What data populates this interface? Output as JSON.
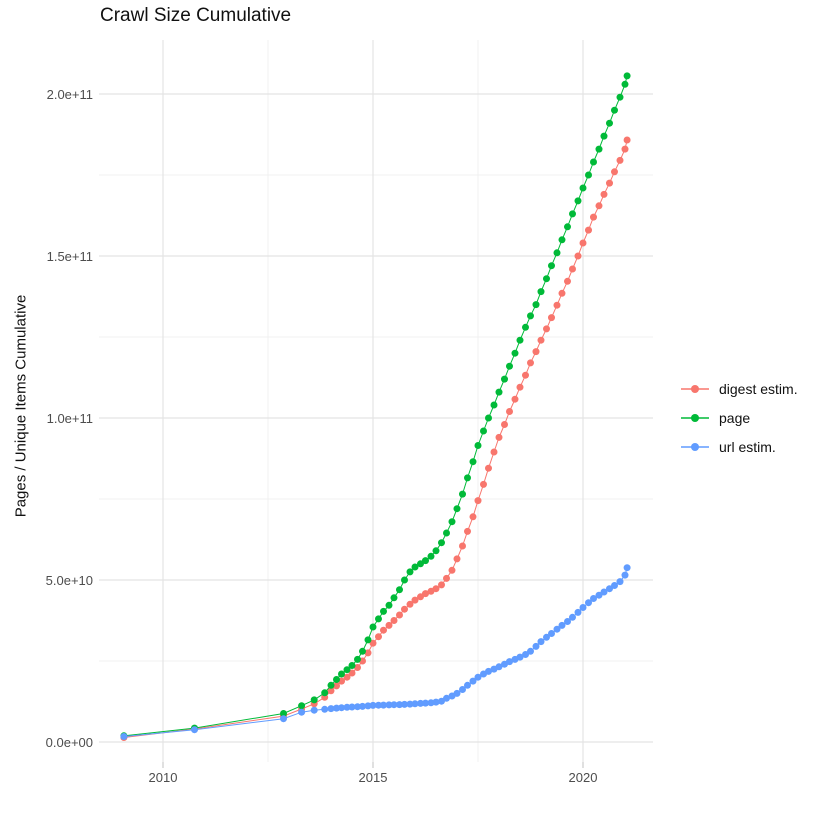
{
  "chart_data": {
    "type": "scatter",
    "title": "Crawl Size Cumulative",
    "xlabel": "",
    "legend_position": "right",
    "grid": true,
    "value_scale": "series point values are billions (1e9) of pages / unique items",
    "x_axis": {
      "range_years": [
        2008.45,
        2021.7
      ],
      "ticks": [
        {
          "label": "2010",
          "year": 2010
        },
        {
          "label": "2015",
          "year": 2015
        },
        {
          "label": "2020",
          "year": 2020
        }
      ],
      "minor_years": [
        2012.5,
        2017.5
      ]
    },
    "y_axis": {
      "label": "Pages / Unique Items Cumulative",
      "range_billions": [
        0,
        216
      ],
      "ticks": [
        {
          "label": "0.0e+00",
          "value_billions": 0
        },
        {
          "label": "5.0e+10",
          "value_billions": 50
        },
        {
          "label": "1.0e+11",
          "value_billions": 100
        },
        {
          "label": "1.5e+11",
          "value_billions": 150
        },
        {
          "label": "2.0e+11",
          "value_billions": 200
        }
      ],
      "minor_billions": [
        25,
        75,
        125,
        175
      ]
    },
    "series": [
      {
        "name": "digest estim.",
        "color": "#F8766D",
        "points": [
          [
            2009.07,
            1.4
          ],
          [
            2010.75,
            4.0
          ],
          [
            2012.87,
            8.0
          ],
          [
            2013.3,
            10.2
          ],
          [
            2013.6,
            11.8
          ],
          [
            2013.85,
            13.8
          ],
          [
            2014.0,
            15.8
          ],
          [
            2014.13,
            17.3
          ],
          [
            2014.25,
            18.8
          ],
          [
            2014.38,
            20.0
          ],
          [
            2014.5,
            21.3
          ],
          [
            2014.63,
            23.0
          ],
          [
            2014.75,
            25.0
          ],
          [
            2014.88,
            27.5
          ],
          [
            2015.0,
            30.5
          ],
          [
            2015.13,
            32.5
          ],
          [
            2015.25,
            34.5
          ],
          [
            2015.38,
            36.0
          ],
          [
            2015.5,
            37.5
          ],
          [
            2015.63,
            39.2
          ],
          [
            2015.75,
            41.0
          ],
          [
            2015.88,
            42.5
          ],
          [
            2016.0,
            43.8
          ],
          [
            2016.13,
            44.8
          ],
          [
            2016.25,
            45.8
          ],
          [
            2016.38,
            46.5
          ],
          [
            2016.5,
            47.3
          ],
          [
            2016.63,
            48.5
          ],
          [
            2016.75,
            50.5
          ],
          [
            2016.88,
            53.0
          ],
          [
            2017.0,
            56.5
          ],
          [
            2017.13,
            60.5
          ],
          [
            2017.25,
            65.0
          ],
          [
            2017.38,
            69.5
          ],
          [
            2017.5,
            74.5
          ],
          [
            2017.63,
            79.5
          ],
          [
            2017.75,
            84.5
          ],
          [
            2017.88,
            89.5
          ],
          [
            2018.0,
            94.0
          ],
          [
            2018.13,
            98.0
          ],
          [
            2018.25,
            102.0
          ],
          [
            2018.38,
            105.8
          ],
          [
            2018.5,
            109.5
          ],
          [
            2018.63,
            113.2
          ],
          [
            2018.75,
            117.0
          ],
          [
            2018.88,
            120.5
          ],
          [
            2019.0,
            124.0
          ],
          [
            2019.13,
            127.5
          ],
          [
            2019.25,
            131.0
          ],
          [
            2019.38,
            134.8
          ],
          [
            2019.5,
            138.5
          ],
          [
            2019.63,
            142.2
          ],
          [
            2019.75,
            146.0
          ],
          [
            2019.88,
            150.0
          ],
          [
            2020.0,
            154.0
          ],
          [
            2020.13,
            158.0
          ],
          [
            2020.25,
            162.0
          ],
          [
            2020.38,
            165.5
          ],
          [
            2020.5,
            169.0
          ],
          [
            2020.63,
            172.5
          ],
          [
            2020.75,
            176.0
          ],
          [
            2020.88,
            179.5
          ],
          [
            2021.0,
            183.0
          ],
          [
            2021.05,
            185.8
          ]
        ]
      },
      {
        "name": "page",
        "color": "#00BA38",
        "points": [
          [
            2009.07,
            1.9
          ],
          [
            2010.75,
            4.3
          ],
          [
            2012.87,
            8.8
          ],
          [
            2013.3,
            11.2
          ],
          [
            2013.6,
            13.0
          ],
          [
            2013.85,
            15.2
          ],
          [
            2014.0,
            17.5
          ],
          [
            2014.13,
            19.3
          ],
          [
            2014.25,
            21.0
          ],
          [
            2014.38,
            22.3
          ],
          [
            2014.5,
            23.6
          ],
          [
            2014.63,
            25.5
          ],
          [
            2014.75,
            28.0
          ],
          [
            2014.88,
            31.5
          ],
          [
            2015.0,
            35.5
          ],
          [
            2015.13,
            38.0
          ],
          [
            2015.25,
            40.3
          ],
          [
            2015.38,
            42.2
          ],
          [
            2015.5,
            44.5
          ],
          [
            2015.63,
            47.0
          ],
          [
            2015.75,
            50.0
          ],
          [
            2015.88,
            52.5
          ],
          [
            2016.0,
            54.0
          ],
          [
            2016.13,
            55.0
          ],
          [
            2016.25,
            56.0
          ],
          [
            2016.38,
            57.3
          ],
          [
            2016.5,
            59.0
          ],
          [
            2016.63,
            61.5
          ],
          [
            2016.75,
            64.5
          ],
          [
            2016.88,
            68.0
          ],
          [
            2017.0,
            72.0
          ],
          [
            2017.13,
            76.5
          ],
          [
            2017.25,
            81.5
          ],
          [
            2017.38,
            86.5
          ],
          [
            2017.5,
            91.5
          ],
          [
            2017.63,
            96.0
          ],
          [
            2017.75,
            100.0
          ],
          [
            2017.88,
            104.0
          ],
          [
            2018.0,
            108.0
          ],
          [
            2018.13,
            112.0
          ],
          [
            2018.25,
            116.0
          ],
          [
            2018.38,
            120.0
          ],
          [
            2018.5,
            124.0
          ],
          [
            2018.63,
            128.0
          ],
          [
            2018.75,
            131.5
          ],
          [
            2018.88,
            135.0
          ],
          [
            2019.0,
            139.0
          ],
          [
            2019.13,
            143.0
          ],
          [
            2019.25,
            147.0
          ],
          [
            2019.38,
            151.0
          ],
          [
            2019.5,
            155.0
          ],
          [
            2019.63,
            159.0
          ],
          [
            2019.75,
            163.0
          ],
          [
            2019.88,
            167.0
          ],
          [
            2020.0,
            171.0
          ],
          [
            2020.13,
            175.0
          ],
          [
            2020.25,
            179.0
          ],
          [
            2020.38,
            183.0
          ],
          [
            2020.5,
            187.0
          ],
          [
            2020.63,
            191.0
          ],
          [
            2020.75,
            195.0
          ],
          [
            2020.88,
            199.0
          ],
          [
            2021.0,
            203.0
          ],
          [
            2021.05,
            205.6
          ]
        ]
      },
      {
        "name": "url estim.",
        "color": "#619CFF",
        "points": [
          [
            2009.07,
            1.7
          ],
          [
            2010.75,
            3.8
          ],
          [
            2012.87,
            7.2
          ],
          [
            2013.3,
            9.2
          ],
          [
            2013.6,
            9.8
          ],
          [
            2013.85,
            10.1
          ],
          [
            2014.0,
            10.3
          ],
          [
            2014.13,
            10.45
          ],
          [
            2014.25,
            10.6
          ],
          [
            2014.38,
            10.7
          ],
          [
            2014.5,
            10.8
          ],
          [
            2014.63,
            10.9
          ],
          [
            2014.75,
            11.0
          ],
          [
            2014.88,
            11.15
          ],
          [
            2015.0,
            11.3
          ],
          [
            2015.13,
            11.35
          ],
          [
            2015.25,
            11.4
          ],
          [
            2015.38,
            11.45
          ],
          [
            2015.5,
            11.5
          ],
          [
            2015.63,
            11.55
          ],
          [
            2015.75,
            11.6
          ],
          [
            2015.88,
            11.7
          ],
          [
            2016.0,
            11.8
          ],
          [
            2016.13,
            11.9
          ],
          [
            2016.25,
            12.0
          ],
          [
            2016.38,
            12.1
          ],
          [
            2016.5,
            12.3
          ],
          [
            2016.63,
            12.6
          ],
          [
            2016.75,
            13.5
          ],
          [
            2016.88,
            14.2
          ],
          [
            2017.0,
            15.0
          ],
          [
            2017.13,
            16.2
          ],
          [
            2017.25,
            17.5
          ],
          [
            2017.38,
            18.8
          ],
          [
            2017.5,
            20.0
          ],
          [
            2017.63,
            21.0
          ],
          [
            2017.75,
            21.8
          ],
          [
            2017.88,
            22.5
          ],
          [
            2018.0,
            23.2
          ],
          [
            2018.13,
            24.0
          ],
          [
            2018.25,
            24.8
          ],
          [
            2018.38,
            25.5
          ],
          [
            2018.5,
            26.2
          ],
          [
            2018.63,
            27.0
          ],
          [
            2018.75,
            28.0
          ],
          [
            2018.88,
            29.5
          ],
          [
            2019.0,
            31.0
          ],
          [
            2019.13,
            32.3
          ],
          [
            2019.25,
            33.5
          ],
          [
            2019.38,
            34.8
          ],
          [
            2019.5,
            36.0
          ],
          [
            2019.63,
            37.2
          ],
          [
            2019.75,
            38.5
          ],
          [
            2019.88,
            40.0
          ],
          [
            2020.0,
            41.5
          ],
          [
            2020.13,
            43.0
          ],
          [
            2020.25,
            44.3
          ],
          [
            2020.38,
            45.3
          ],
          [
            2020.5,
            46.3
          ],
          [
            2020.63,
            47.3
          ],
          [
            2020.75,
            48.3
          ],
          [
            2020.88,
            49.5
          ],
          [
            2021.0,
            51.5
          ],
          [
            2021.05,
            53.8
          ]
        ]
      }
    ]
  }
}
